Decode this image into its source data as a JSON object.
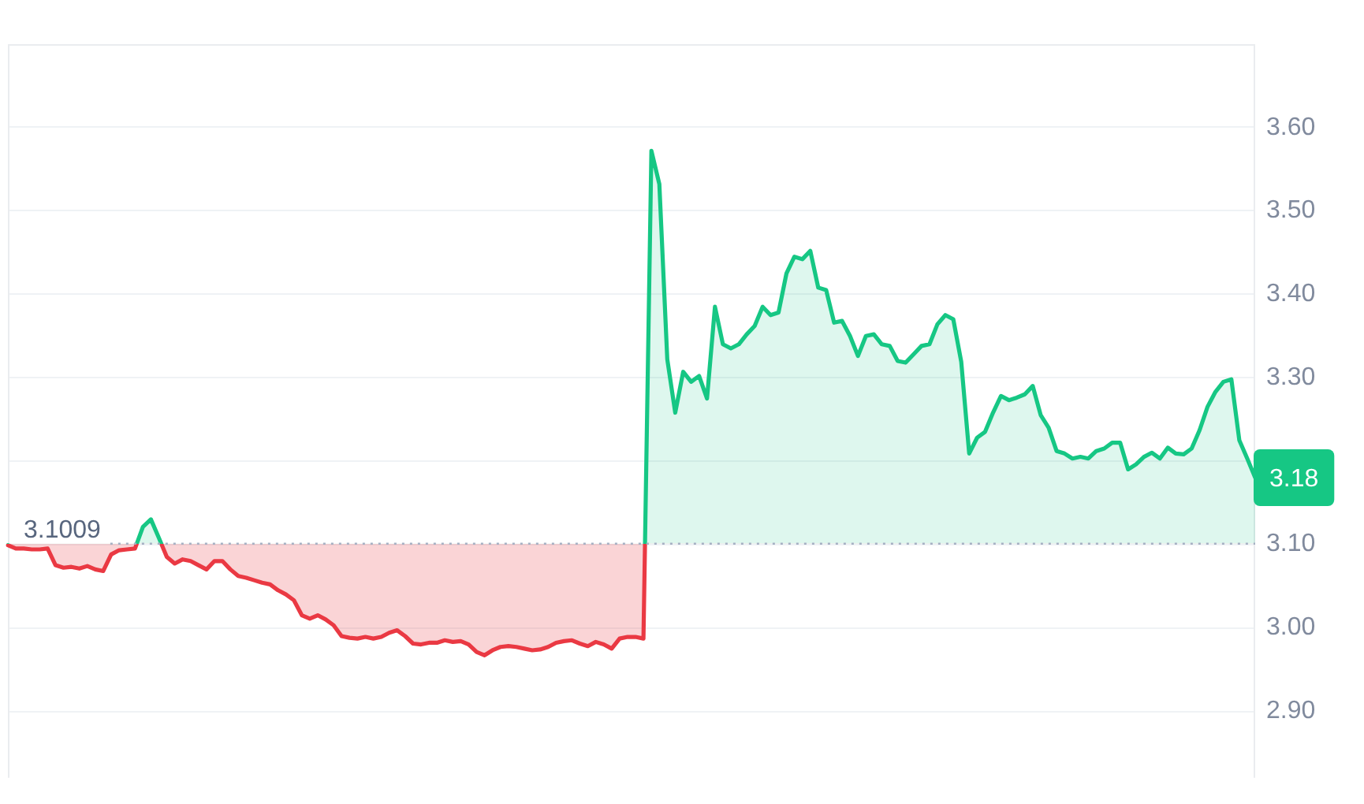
{
  "chart_data": {
    "type": "area",
    "categories": [
      null,
      null,
      null,
      null,
      null,
      null,
      null,
      null,
      null,
      null,
      null,
      null,
      null,
      null,
      null,
      null,
      null,
      null,
      null,
      null,
      null,
      null,
      null,
      null,
      null,
      null,
      null,
      null,
      null,
      null,
      null,
      null,
      null,
      null,
      null,
      null,
      null,
      null,
      null,
      null,
      null,
      null,
      null,
      null,
      null,
      null,
      null,
      null,
      null,
      null,
      null,
      null,
      null,
      null,
      null,
      null,
      null,
      null,
      null,
      null,
      null,
      null,
      null,
      null,
      null,
      null,
      null,
      null,
      null,
      null,
      null,
      null,
      null,
      null,
      null,
      null,
      null,
      null,
      null,
      null,
      null,
      null,
      null,
      null,
      null,
      null,
      null,
      null,
      null,
      null,
      null,
      null,
      null,
      null,
      null,
      null,
      null,
      null,
      null,
      null,
      null,
      null,
      null,
      null,
      null,
      null,
      null,
      null,
      null,
      null,
      null,
      null,
      null,
      null,
      null,
      null,
      null,
      null,
      null,
      null,
      null,
      null,
      null,
      null,
      null,
      null,
      null,
      null,
      null,
      null,
      null,
      null,
      null,
      null,
      null,
      null,
      null,
      null,
      null,
      null,
      null,
      null,
      null,
      null,
      null,
      null,
      null,
      null,
      null,
      null,
      null,
      null,
      null,
      null,
      null,
      null,
      null,
      null
    ],
    "values": [
      3.099,
      3.095,
      3.095,
      3.094,
      3.094,
      3.095,
      3.075,
      3.072,
      3.073,
      3.071,
      3.074,
      3.07,
      3.068,
      3.088,
      3.093,
      3.094,
      3.095,
      3.121,
      3.13,
      3.108,
      3.085,
      3.077,
      3.082,
      3.08,
      3.075,
      3.07,
      3.08,
      3.08,
      3.07,
      3.062,
      3.06,
      3.057,
      3.054,
      3.052,
      3.045,
      3.04,
      3.033,
      3.015,
      3.011,
      3.015,
      3.01,
      3.003,
      2.99,
      2.988,
      2.987,
      2.989,
      2.987,
      2.989,
      2.994,
      2.997,
      2.99,
      2.981,
      2.98,
      2.982,
      2.982,
      2.985,
      2.983,
      2.984,
      2.98,
      2.971,
      2.967,
      2.973,
      2.977,
      2.978,
      2.977,
      2.975,
      2.973,
      2.974,
      2.977,
      2.982,
      2.984,
      2.985,
      2.981,
      2.978,
      2.983,
      2.98,
      2.975,
      2.987,
      2.989,
      2.989,
      2.987,
      3.572,
      3.532,
      3.322,
      3.258,
      3.307,
      3.295,
      3.302,
      3.275,
      3.385,
      3.34,
      3.335,
      3.34,
      3.352,
      3.362,
      3.385,
      3.375,
      3.378,
      3.425,
      3.445,
      3.442,
      3.452,
      3.408,
      3.405,
      3.366,
      3.368,
      3.35,
      3.326,
      3.35,
      3.352,
      3.34,
      3.338,
      3.32,
      3.318,
      3.328,
      3.338,
      3.34,
      3.364,
      3.375,
      3.37,
      3.319,
      3.209,
      3.228,
      3.235,
      3.258,
      3.278,
      3.273,
      3.276,
      3.28,
      3.29,
      3.255,
      3.24,
      3.212,
      3.209,
      3.203,
      3.205,
      3.203,
      3.212,
      3.215,
      3.222,
      3.222,
      3.19,
      3.196,
      3.205,
      3.21,
      3.203,
      3.216,
      3.209,
      3.208,
      3.215,
      3.237,
      3.265,
      3.283,
      3.295,
      3.298,
      3.225,
      3.203,
      3.18
    ],
    "colors": [
      "#ea3943",
      "#ea3943",
      "#ea3943",
      "#ea3943",
      "#ea3943",
      "#ea3943",
      "#ea3943",
      "#ea3943",
      "#ea3943",
      "#ea3943",
      "#ea3943",
      "#ea3943",
      "#ea3943",
      "#ea3943",
      "#ea3943",
      "#ea3943",
      "#ea3943",
      "#16c784",
      "#16c784",
      "#16c784",
      "#ea3943",
      "#ea3943",
      "#ea3943",
      "#ea3943",
      "#ea3943",
      "#ea3943",
      "#ea3943",
      "#ea3943",
      "#ea3943",
      "#ea3943",
      "#ea3943",
      "#ea3943",
      "#ea3943",
      "#ea3943",
      "#ea3943",
      "#ea3943",
      "#ea3943",
      "#ea3943",
      "#ea3943",
      "#ea3943",
      "#ea3943",
      "#ea3943",
      "#ea3943",
      "#ea3943",
      "#ea3943",
      "#ea3943",
      "#ea3943",
      "#ea3943",
      "#ea3943",
      "#ea3943",
      "#ea3943",
      "#ea3943",
      "#ea3943",
      "#ea3943",
      "#ea3943",
      "#ea3943",
      "#ea3943",
      "#ea3943",
      "#ea3943",
      "#ea3943",
      "#ea3943",
      "#ea3943",
      "#ea3943",
      "#ea3943",
      "#ea3943",
      "#ea3943",
      "#ea3943",
      "#ea3943",
      "#ea3943",
      "#ea3943",
      "#ea3943",
      "#ea3943",
      "#ea3943",
      "#ea3943",
      "#ea3943",
      "#ea3943",
      "#ea3943",
      "#ea3943",
      "#ea3943",
      "#ea3943",
      "#ea3943",
      "#16c784",
      "#16c784",
      "#16c784",
      "#16c784",
      "#16c784",
      "#16c784",
      "#16c784",
      "#16c784",
      "#16c784",
      "#16c784",
      "#16c784",
      "#16c784",
      "#16c784",
      "#16c784",
      "#16c784",
      "#16c784",
      "#16c784",
      "#16c784",
      "#16c784",
      "#16c784",
      "#16c784",
      "#16c784",
      "#16c784",
      "#16c784",
      "#16c784",
      "#16c784",
      "#16c784",
      "#16c784",
      "#16c784",
      "#16c784",
      "#16c784",
      "#16c784",
      "#16c784",
      "#16c784",
      "#16c784",
      "#16c784",
      "#16c784",
      "#16c784",
      "#16c784",
      "#16c784",
      "#16c784",
      "#16c784",
      "#16c784",
      "#16c784",
      "#16c784",
      "#16c784",
      "#16c784",
      "#16c784",
      "#16c784",
      "#16c784",
      "#16c784",
      "#16c784",
      "#16c784",
      "#16c784",
      "#16c784",
      "#16c784",
      "#16c784",
      "#16c784",
      "#16c784",
      "#16c784",
      "#16c784",
      "#16c784",
      "#16c784",
      "#16c784",
      "#16c784",
      "#16c784",
      "#16c784",
      "#16c784",
      "#16c784",
      "#16c784",
      "#16c784",
      "#16c784",
      "#16c784",
      "#16c784",
      "#16c784",
      "#16c784",
      "#16c784"
    ],
    "ylim": [
      2.82,
      3.7
    ],
    "yticks": [
      {
        "value": 2.9,
        "label": "2.90"
      },
      {
        "value": 3.0,
        "label": "3.00"
      },
      {
        "value": 3.1,
        "label": "3.10"
      },
      {
        "value": 3.2,
        "label": null
      },
      {
        "value": 3.3,
        "label": "3.30"
      },
      {
        "value": 3.4,
        "label": "3.40"
      },
      {
        "value": 3.5,
        "label": "3.50"
      },
      {
        "value": 3.6,
        "label": "3.60"
      }
    ],
    "grid": "y",
    "tick_labels": "y",
    "marker": "none",
    "ref_lines": [
      {
        "axis": "y",
        "value": 3.1009,
        "label": "3.1009",
        "color": "#a6b0c3",
        "line_style": "dotted"
      }
    ],
    "annotations": [
      "3.18"
    ]
  }
}
